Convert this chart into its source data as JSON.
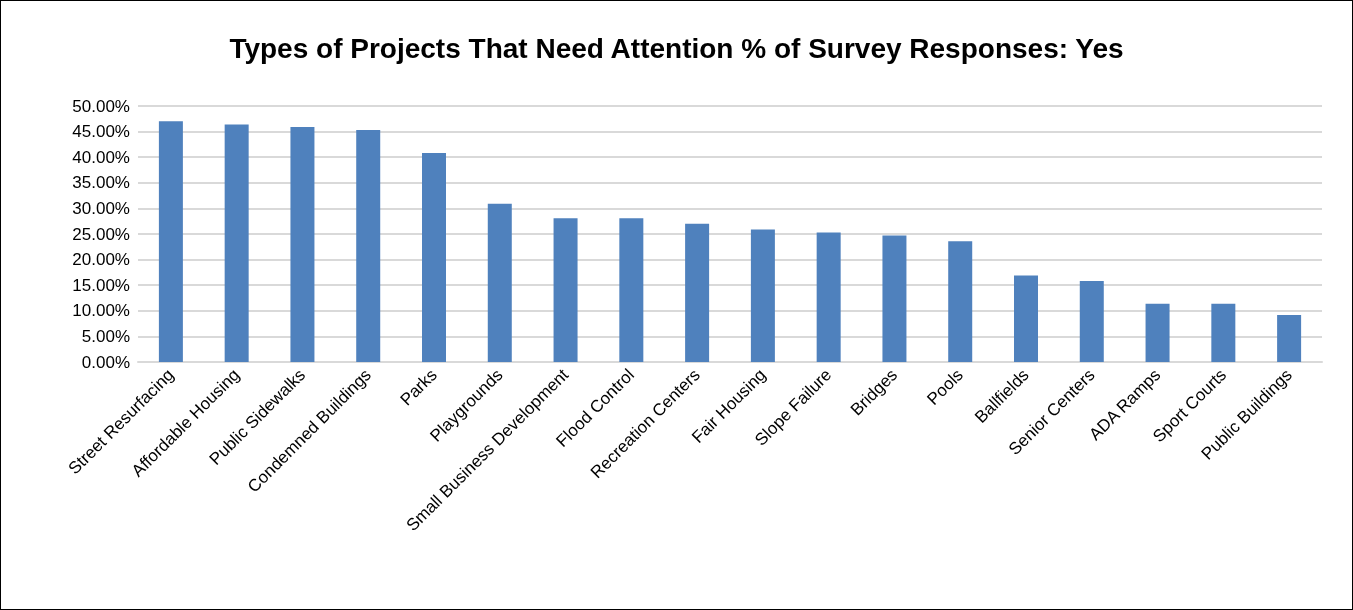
{
  "chart_data": {
    "type": "bar",
    "title": "Types of Projects That Need Attention % of Survey Responses: Yes",
    "categories": [
      "Street Resurfacing",
      "Affordable Housing",
      "Public Sidewalks",
      "Condemned Buildings",
      "Parks",
      "Playgrounds",
      "Small Business Development",
      "Flood Control",
      "Recreation Centers",
      "Fair Housing",
      "Slope Failure",
      "Bridges",
      "Pools",
      "Ballfields",
      "Senior Centers",
      "ADA Ramps",
      "Sport Courts",
      "Public Buildings"
    ],
    "values": [
      47.0,
      46.4,
      45.9,
      45.3,
      40.8,
      30.9,
      28.1,
      28.1,
      27.0,
      25.9,
      25.3,
      24.7,
      23.6,
      16.9,
      15.8,
      11.4,
      11.4,
      9.2
    ],
    "color": "#4f81bd",
    "ylim": [
      0,
      50
    ],
    "yticks": [
      {
        "value": 0,
        "label": "0.00%"
      },
      {
        "value": 5,
        "label": "5.00%"
      },
      {
        "value": 10,
        "label": "10.00%"
      },
      {
        "value": 15,
        "label": "15.00%"
      },
      {
        "value": 20,
        "label": "20.00%"
      },
      {
        "value": 25,
        "label": "25.00%"
      },
      {
        "value": 30,
        "label": "30.00%"
      },
      {
        "value": 35,
        "label": "35.00%"
      },
      {
        "value": 40,
        "label": "40.00%"
      },
      {
        "value": 45,
        "label": "45.00%"
      },
      {
        "value": 50,
        "label": "50.00%"
      }
    ],
    "grid": true
  }
}
